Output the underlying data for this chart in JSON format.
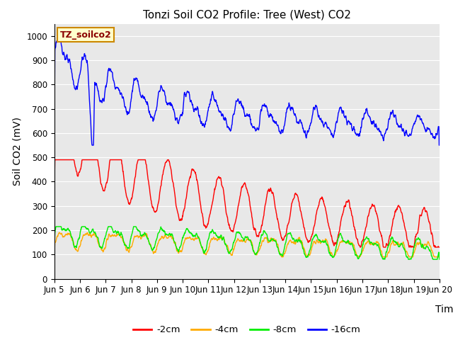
{
  "title": "Tonzi Soil CO2 Profile: Tree (West) CO2",
  "ylabel": "Soil CO2 (mV)",
  "xlabel": "Time",
  "label_box_text": "TZ_soilco2",
  "bg_color": "#e8e8e8",
  "fig_bg_color": "#ffffff",
  "ylim": [
    0,
    1050
  ],
  "yticks": [
    0,
    100,
    200,
    300,
    400,
    500,
    600,
    700,
    800,
    900,
    1000
  ],
  "xtick_labels": [
    "Jun 5",
    "Jun 6",
    "Jun 7",
    "Jun 8",
    "Jun 9",
    "Jun 10",
    "Jun 11",
    "Jun 12",
    "Jun 13",
    "Jun 14",
    "Jun 15",
    "Jun 16",
    "Jun 17",
    "Jun 18",
    "Jun 19",
    "Jun 20"
  ],
  "lines": {
    "-2cm": {
      "color": "#ff0000",
      "lw": 1.0
    },
    "-4cm": {
      "color": "#ffaa00",
      "lw": 1.0
    },
    "-8cm": {
      "color": "#00ee00",
      "lw": 1.0
    },
    "-16cm": {
      "color": "#0000ff",
      "lw": 1.0
    }
  },
  "title_fontsize": 11,
  "axis_label_fontsize": 10,
  "tick_fontsize": 8.5
}
